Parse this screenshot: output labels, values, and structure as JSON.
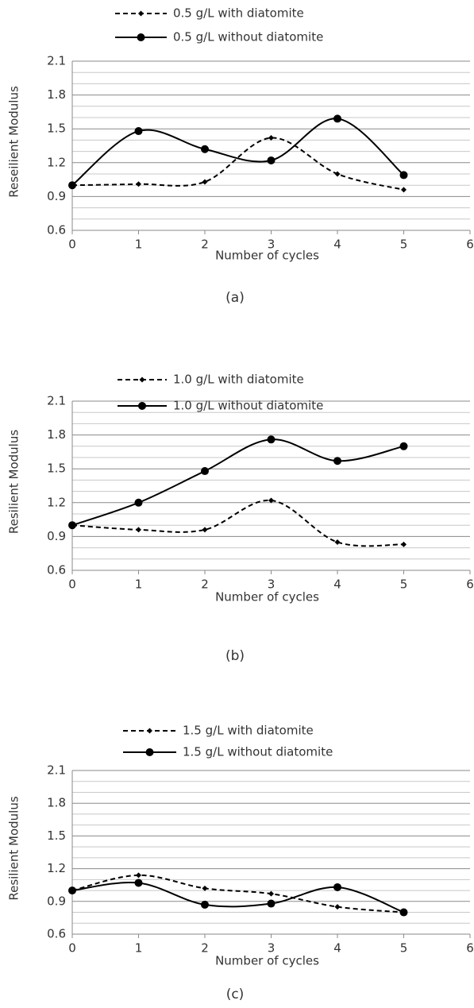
{
  "chart_data": [
    {
      "type": "line",
      "caption": "(a)",
      "x_label": "Number of cycles",
      "y_label": "Reseilient Modulus",
      "x": [
        0,
        1,
        2,
        3,
        4,
        5
      ],
      "xlim": [
        0,
        6
      ],
      "xticks": [
        0,
        1,
        2,
        3,
        4,
        5,
        6
      ],
      "ylim": [
        0.6,
        2.1
      ],
      "yticks": [
        0.6,
        0.9,
        1.2,
        1.5,
        1.8,
        2.1
      ],
      "minor_yticks": [
        0.7,
        0.8,
        1.0,
        1.1,
        1.3,
        1.4,
        1.6,
        1.7,
        1.9,
        2.0
      ],
      "grid": true,
      "smooth": true,
      "series": [
        {
          "name": "0.5 g/L with diatomite",
          "color": "#000000",
          "dashed": true,
          "marker": "diamond",
          "values": [
            1.0,
            1.01,
            1.03,
            1.42,
            1.1,
            0.96
          ]
        },
        {
          "name": "0.5 g/L without diatomite",
          "color": "#000000",
          "dashed": false,
          "marker": "circle",
          "values": [
            1.0,
            1.48,
            1.32,
            1.22,
            1.59,
            1.09
          ]
        }
      ]
    },
    {
      "type": "line",
      "caption": "(b)",
      "x_label": "Number of cycles",
      "y_label": "Resilient Modulus",
      "x": [
        0,
        1,
        2,
        3,
        4,
        5
      ],
      "xlim": [
        0,
        6
      ],
      "xticks": [
        0,
        1,
        2,
        3,
        4,
        5,
        6
      ],
      "ylim": [
        0.6,
        2.1
      ],
      "yticks": [
        0.6,
        0.9,
        1.2,
        1.5,
        1.8,
        2.1
      ],
      "minor_yticks": [
        0.7,
        0.8,
        1.0,
        1.1,
        1.3,
        1.4,
        1.6,
        1.7,
        1.9,
        2.0
      ],
      "grid": true,
      "smooth": true,
      "series": [
        {
          "name": "1.0 g/L with diatomite",
          "color": "#000000",
          "dashed": true,
          "marker": "diamond",
          "values": [
            1.0,
            0.96,
            0.96,
            1.22,
            0.85,
            0.83
          ]
        },
        {
          "name": "1.0 g/L without diatomite",
          "color": "#000000",
          "dashed": false,
          "marker": "circle",
          "values": [
            1.0,
            1.2,
            1.48,
            1.76,
            1.57,
            1.7
          ]
        }
      ]
    },
    {
      "type": "line",
      "caption": "(c)",
      "x_label": "Number of cycles",
      "y_label": "Resilient Modulus",
      "x": [
        0,
        1,
        2,
        3,
        4,
        5
      ],
      "xlim": [
        0,
        6
      ],
      "xticks": [
        0,
        1,
        2,
        3,
        4,
        5,
        6
      ],
      "ylim": [
        0.6,
        2.1
      ],
      "yticks": [
        0.6,
        0.9,
        1.2,
        1.5,
        1.8,
        2.1
      ],
      "minor_yticks": [
        0.7,
        0.8,
        1.0,
        1.1,
        1.3,
        1.4,
        1.6,
        1.7,
        1.9,
        2.0
      ],
      "grid": true,
      "smooth": true,
      "series": [
        {
          "name": "1.5 g/L with diatomite",
          "color": "#000000",
          "dashed": true,
          "marker": "diamond",
          "values": [
            1.0,
            1.14,
            1.02,
            0.97,
            0.85,
            0.8
          ]
        },
        {
          "name": "1.5 g/L without diatomite",
          "color": "#000000",
          "dashed": false,
          "marker": "circle",
          "values": [
            1.0,
            1.07,
            0.87,
            0.88,
            1.03,
            0.8
          ]
        }
      ]
    }
  ]
}
